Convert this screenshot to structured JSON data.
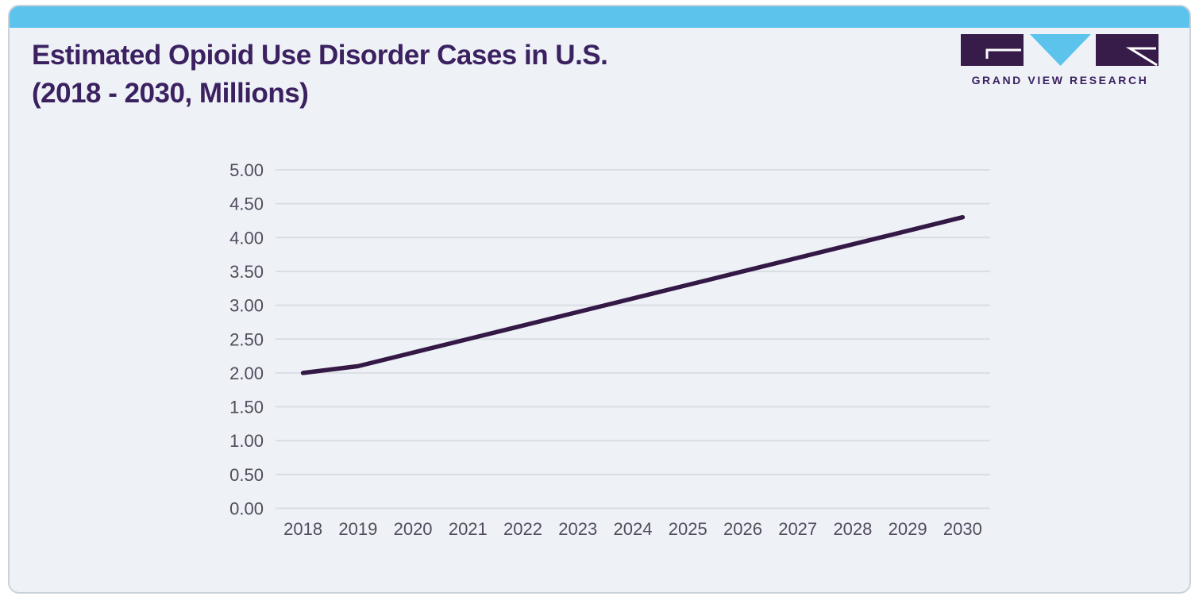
{
  "header": {
    "title_line1": "Estimated Opioid Use Disorder Cases in U.S.",
    "title_line2": "(2018 - 2030, Millions)",
    "brand_name": "GRAND VIEW RESEARCH"
  },
  "colors": {
    "accent_blue": "#5BC3EC",
    "brand_purple": "#3C2161",
    "logo_purple": "#371B49",
    "line_purple": "#341845",
    "card_bg": "#EEF2F7",
    "gridline": "#DADDE3",
    "axis_text": "#514B5C"
  },
  "chart_data": {
    "type": "line",
    "title": "Estimated Opioid Use Disorder Cases in U.S. (2018 - 2030, Millions)",
    "categories": [
      "2018",
      "2019",
      "2020",
      "2021",
      "2022",
      "2023",
      "2024",
      "2025",
      "2026",
      "2027",
      "2028",
      "2029",
      "2030"
    ],
    "series": [
      {
        "name": "Estimated opioid use disorder cases (Millions)",
        "values": [
          2.0,
          2.1,
          2.3,
          2.5,
          2.7,
          2.9,
          3.1,
          3.3,
          3.5,
          3.7,
          3.9,
          4.1,
          4.3
        ]
      }
    ],
    "xlabel": "",
    "ylabel": "",
    "ylim": [
      0,
      5
    ],
    "ytick_step": 0.5,
    "ytick_labels": [
      "0.00",
      "0.50",
      "1.00",
      "1.50",
      "2.00",
      "2.50",
      "3.00",
      "3.50",
      "4.00",
      "4.50",
      "5.00"
    ],
    "grid": true,
    "legend": false,
    "line_color": "#341845"
  }
}
